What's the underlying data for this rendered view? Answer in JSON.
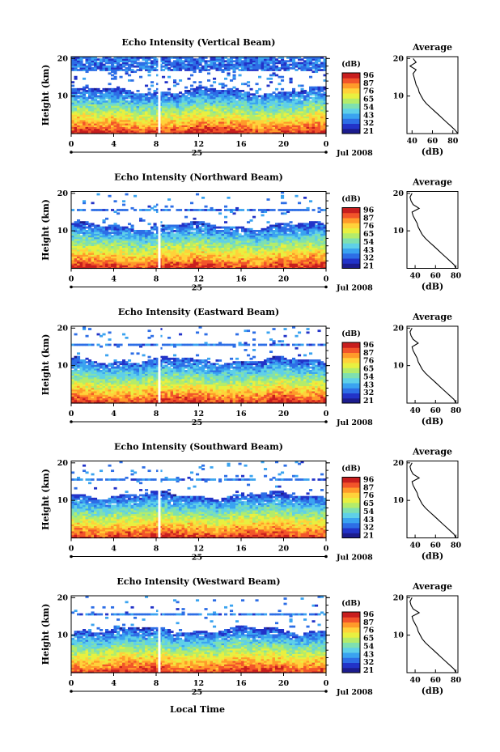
{
  "figure": {
    "xlabel": "Local Time",
    "date_label": "Jul 2008",
    "day_label": "25",
    "ylabel": "Height (km)",
    "colorbar_unit": "(dB)",
    "avg_title": "Average",
    "avg_xlabel": "(dB)",
    "colorbar_ticks": [
      "96",
      "87",
      "76",
      "65",
      "54",
      "43",
      "32",
      "21"
    ],
    "colormap": [
      "#1c1c8e",
      "#2233c8",
      "#2d6ee6",
      "#3aa3f0",
      "#5fd0e8",
      "#7fe0b0",
      "#b4ec6a",
      "#e8f040",
      "#ffd23a",
      "#ff9a2a",
      "#f2542a",
      "#c81e1e"
    ]
  },
  "chart_data": [
    {
      "type": "heatmap",
      "title": "Echo Intensity (Vertical Beam)",
      "x_ticks": [
        "0",
        "4",
        "8",
        "12",
        "16",
        "20",
        "0"
      ],
      "xlim": [
        0,
        24
      ],
      "y_ticks": [
        "20",
        "10"
      ],
      "ylim": [
        0,
        20.5
      ],
      "zlim": [
        21,
        96
      ],
      "data_gap_hour": 8.3,
      "cloud_top_km": 20,
      "average_profile": {
        "xlabel": "(dB)",
        "x_ticks": [
          "40",
          "60",
          "80"
        ],
        "xlim": [
          35,
          85
        ],
        "heights_km": [
          0,
          1,
          2,
          3,
          4,
          5,
          6,
          7,
          8,
          9,
          10,
          11,
          12,
          13,
          14,
          15,
          16,
          17,
          18,
          19,
          20
        ],
        "values_db": [
          85,
          82,
          78,
          74,
          70,
          66,
          62,
          58,
          54,
          51,
          49,
          47,
          46,
          44,
          43,
          42,
          41,
          44,
          38,
          44,
          41
        ]
      }
    },
    {
      "type": "heatmap",
      "title": "Echo Intensity (Northward Beam)",
      "x_ticks": [
        "0",
        "4",
        "8",
        "12",
        "16",
        "20",
        "0"
      ],
      "xlim": [
        0,
        24
      ],
      "y_ticks": [
        "20",
        "10"
      ],
      "ylim": [
        0,
        20.5
      ],
      "zlim": [
        21,
        96
      ],
      "data_gap_hour": 8.3,
      "cloud_top_km": 12.5,
      "average_profile": {
        "xlabel": "(dB)",
        "x_ticks": [
          "40",
          "60",
          "80"
        ],
        "xlim": [
          32,
          82
        ],
        "heights_km": [
          0,
          1,
          2,
          3,
          4,
          5,
          6,
          7,
          8,
          9,
          10,
          11,
          12,
          13,
          14,
          15,
          16,
          17,
          18,
          19,
          20
        ],
        "values_db": [
          80,
          78,
          74,
          70,
          66,
          62,
          58,
          54,
          50,
          47,
          45,
          43,
          42,
          40,
          38,
          37,
          44,
          38,
          36,
          35,
          37
        ]
      }
    },
    {
      "type": "heatmap",
      "title": "Echo Intensity (Eastward Beam)",
      "x_ticks": [
        "0",
        "4",
        "8",
        "12",
        "16",
        "20",
        "0"
      ],
      "xlim": [
        0,
        24
      ],
      "y_ticks": [
        "20",
        "10"
      ],
      "ylim": [
        0,
        20.5
      ],
      "zlim": [
        21,
        96
      ],
      "data_gap_hour": 8.3,
      "cloud_top_km": 12.5,
      "average_profile": {
        "xlabel": "(dB)",
        "x_ticks": [
          "40",
          "60",
          "80"
        ],
        "xlim": [
          32,
          82
        ],
        "heights_km": [
          0,
          1,
          2,
          3,
          4,
          5,
          6,
          7,
          8,
          9,
          10,
          11,
          12,
          13,
          14,
          15,
          16,
          17,
          18,
          19,
          20
        ],
        "values_db": [
          80,
          78,
          74,
          70,
          66,
          62,
          58,
          54,
          50,
          47,
          45,
          43,
          42,
          40,
          38,
          37,
          43,
          38,
          36,
          35,
          37
        ]
      }
    },
    {
      "type": "heatmap",
      "title": "Echo Intensity (Southward Beam)",
      "x_ticks": [
        "0",
        "4",
        "8",
        "12",
        "16",
        "20",
        "0"
      ],
      "xlim": [
        0,
        24
      ],
      "y_ticks": [
        "20",
        "10"
      ],
      "ylim": [
        0,
        20.5
      ],
      "zlim": [
        21,
        96
      ],
      "data_gap_hour": 8.3,
      "cloud_top_km": 12.5,
      "average_profile": {
        "xlabel": "(dB)",
        "x_ticks": [
          "40",
          "60",
          "80"
        ],
        "xlim": [
          32,
          82
        ],
        "heights_km": [
          0,
          1,
          2,
          3,
          4,
          5,
          6,
          7,
          8,
          9,
          10,
          11,
          12,
          13,
          14,
          15,
          16,
          17,
          18,
          19,
          20
        ],
        "values_db": [
          80,
          78,
          74,
          70,
          66,
          62,
          58,
          54,
          50,
          47,
          45,
          43,
          42,
          40,
          38,
          37,
          44,
          38,
          36,
          35,
          37
        ]
      }
    },
    {
      "type": "heatmap",
      "title": "Echo Intensity (Westward Beam)",
      "x_ticks": [
        "0",
        "4",
        "8",
        "12",
        "16",
        "20",
        "0"
      ],
      "xlim": [
        0,
        24
      ],
      "y_ticks": [
        "20",
        "10"
      ],
      "ylim": [
        0,
        20.5
      ],
      "zlim": [
        21,
        96
      ],
      "data_gap_hour": 8.3,
      "cloud_top_km": 12.5,
      "average_profile": {
        "xlabel": "(dB)",
        "x_ticks": [
          "40",
          "60",
          "80"
        ],
        "xlim": [
          32,
          82
        ],
        "heights_km": [
          0,
          1,
          2,
          3,
          4,
          5,
          6,
          7,
          8,
          9,
          10,
          11,
          12,
          13,
          14,
          15,
          16,
          17,
          18,
          19,
          20
        ],
        "values_db": [
          80,
          78,
          74,
          70,
          66,
          62,
          58,
          54,
          50,
          47,
          45,
          43,
          42,
          40,
          38,
          37,
          44,
          38,
          36,
          35,
          37
        ]
      }
    }
  ]
}
